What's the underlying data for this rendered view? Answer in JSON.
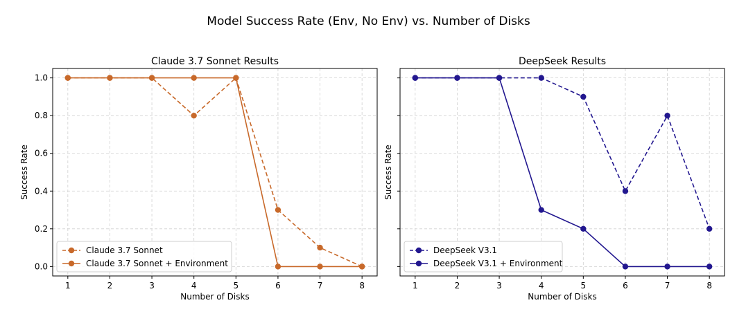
{
  "figure_title": "Model Success Rate (Env, No Env) vs. Number of Disks",
  "colors": {
    "claude": "#c8692a",
    "deepseek": "#22178f",
    "grid": "#d0d0d0"
  },
  "chart_data": [
    {
      "type": "line",
      "title": "Claude 3.7 Sonnet Results",
      "xlabel": "Number of Disks",
      "ylabel": "Success Rate",
      "x": [
        1,
        2,
        3,
        4,
        5,
        6,
        7,
        8
      ],
      "xlim": [
        0.64,
        8.36
      ],
      "ylim": [
        -0.05,
        1.05
      ],
      "xticks": [
        "1",
        "2",
        "3",
        "4",
        "5",
        "6",
        "7",
        "8"
      ],
      "yticks": [
        "0.0",
        "0.2",
        "0.4",
        "0.6",
        "0.8",
        "1.0"
      ],
      "grid": true,
      "legend_position": "lower-left",
      "series": [
        {
          "name": "Claude 3.7 Sonnet",
          "style": "dashed",
          "color": "#c8692a",
          "values": [
            1.0,
            1.0,
            1.0,
            0.8,
            1.0,
            0.3,
            0.1,
            0.0
          ]
        },
        {
          "name": "Claude 3.7 Sonnet + Environment",
          "style": "solid",
          "color": "#c8692a",
          "values": [
            1.0,
            1.0,
            1.0,
            1.0,
            1.0,
            0.0,
            0.0,
            0.0
          ]
        }
      ]
    },
    {
      "type": "line",
      "title": "DeepSeek Results",
      "xlabel": "Number of Disks",
      "ylabel": "Success Rate",
      "x": [
        1,
        2,
        3,
        4,
        5,
        6,
        7,
        8
      ],
      "xlim": [
        0.64,
        8.36
      ],
      "ylim": [
        -0.05,
        1.05
      ],
      "xticks": [
        "1",
        "2",
        "3",
        "4",
        "5",
        "6",
        "7",
        "8"
      ],
      "yticks": [
        "0.0",
        "0.2",
        "0.4",
        "0.6",
        "0.8",
        "1.0"
      ],
      "yticklabels_shown": false,
      "grid": true,
      "legend_position": "lower-left",
      "series": [
        {
          "name": "DeepSeek V3.1",
          "style": "dashed",
          "color": "#22178f",
          "values": [
            1.0,
            1.0,
            1.0,
            1.0,
            0.9,
            0.4,
            0.8,
            0.2
          ]
        },
        {
          "name": "DeepSeek V3.1 + Environment",
          "style": "solid",
          "color": "#22178f",
          "values": [
            1.0,
            1.0,
            1.0,
            0.3,
            0.2,
            0.0,
            0.0,
            0.0
          ]
        }
      ]
    }
  ]
}
